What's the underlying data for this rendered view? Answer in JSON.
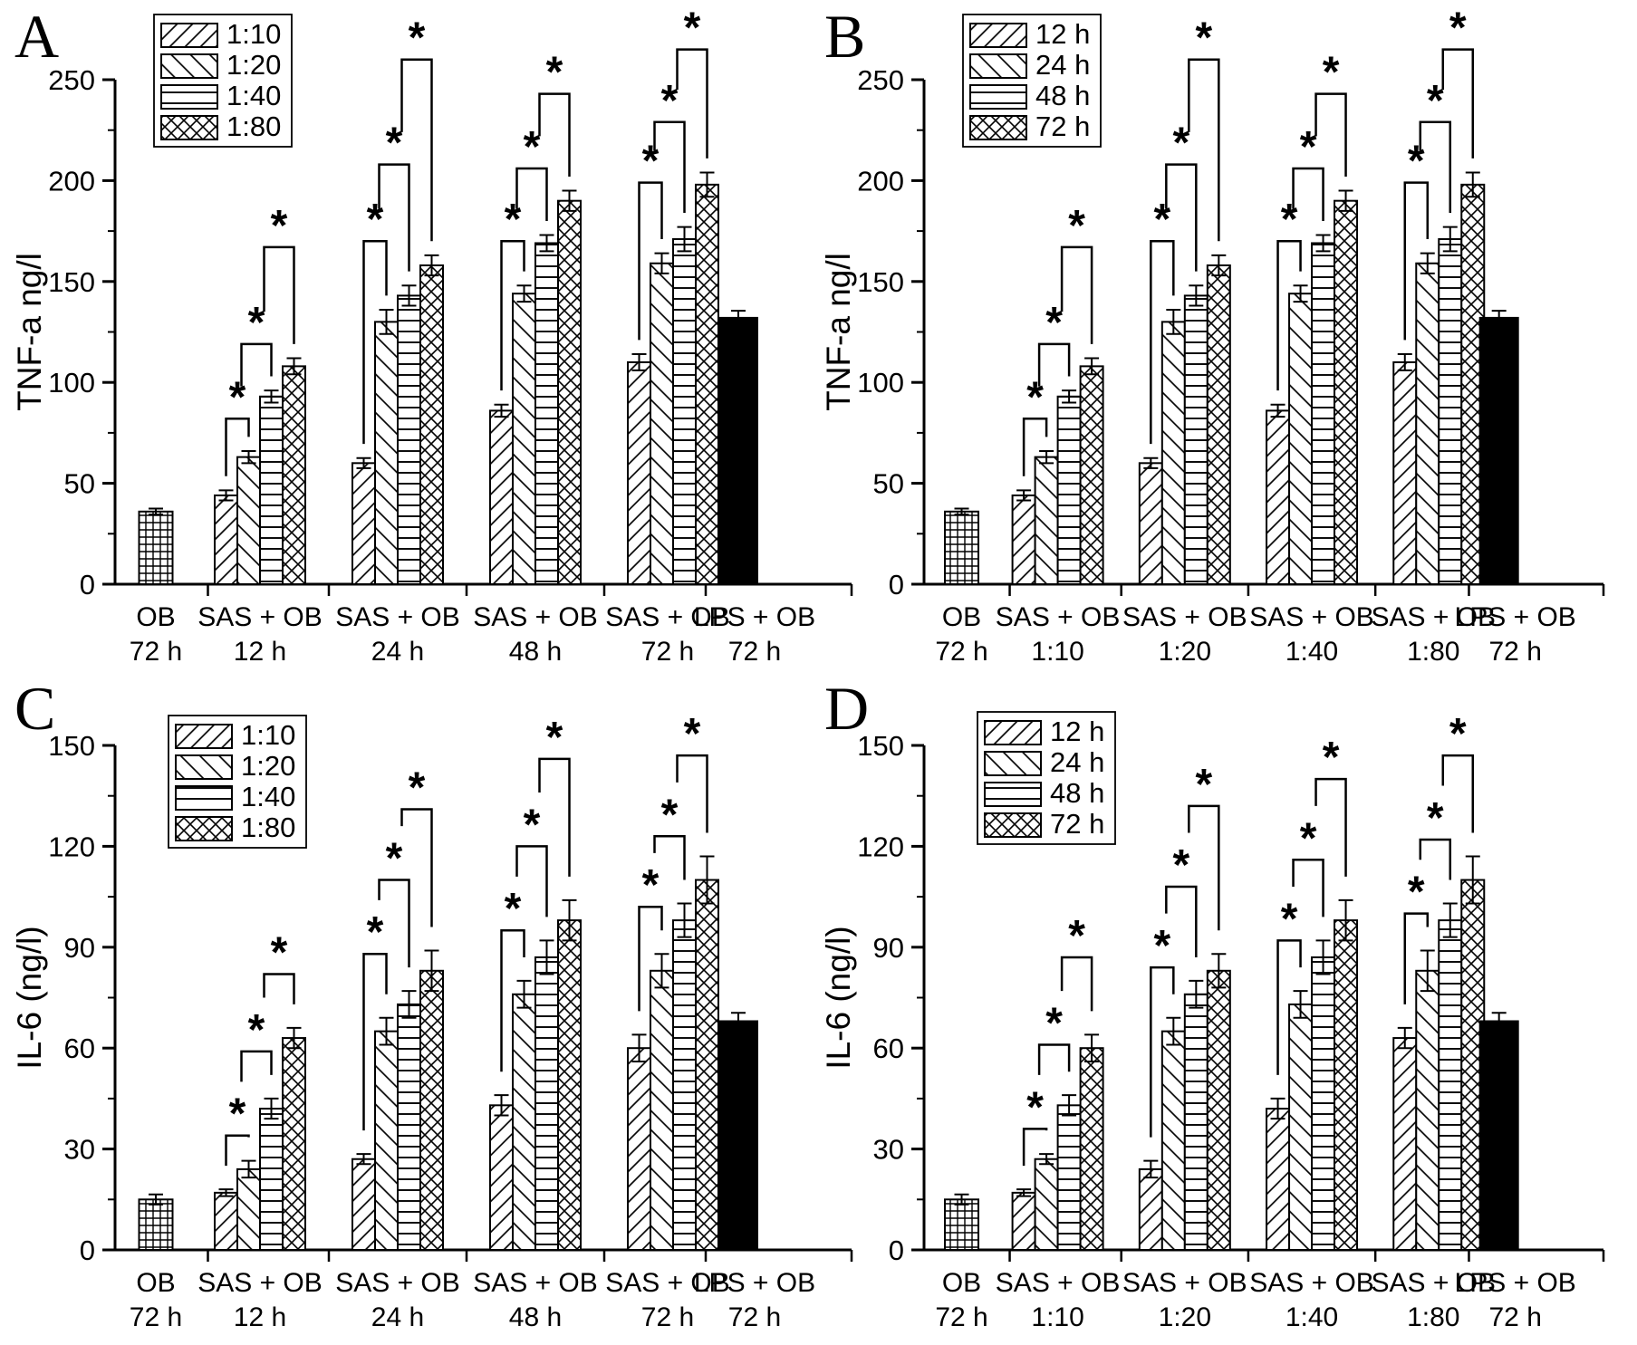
{
  "figure": {
    "background_color": "#ffffff",
    "ink_color": "#000000",
    "significance_marker": "*"
  },
  "chart_data": [
    {
      "panel": "A",
      "type": "bar",
      "title": "",
      "ylabel": "TNF-a  ng/l",
      "xlabel": "",
      "ylim": [
        0,
        250
      ],
      "ytick_major": 50,
      "ytick_minor": 25,
      "grid": false,
      "legend": [
        "1:10",
        "1:20",
        "1:40",
        "1:80"
      ],
      "legend_position": "top-left-inside",
      "legend_patterns": [
        "diagonal-up-hatch",
        "diagonal-down-hatch",
        "horizontal-lines",
        "crosshatch"
      ],
      "categories": [
        [
          "OB",
          "72 h"
        ],
        [
          "SAS + OB",
          "12 h"
        ],
        [
          "SAS + OB",
          "24 h"
        ],
        [
          "SAS + OB",
          "48 h"
        ],
        [
          "SAS + OB",
          "72 h"
        ],
        [
          "LPS + OB",
          "72 h"
        ]
      ],
      "groups": [
        {
          "style": "grid",
          "values": [
            36
          ],
          "errors": [
            1.5
          ]
        },
        {
          "style": "series",
          "values": [
            44,
            63,
            93,
            108
          ],
          "errors": [
            2.5,
            3,
            3,
            4
          ],
          "sig_bracket_heights": [
            82,
            119,
            167
          ]
        },
        {
          "style": "series",
          "values": [
            60,
            130,
            143,
            158
          ],
          "errors": [
            2.5,
            6,
            5,
            5
          ],
          "sig_bracket_heights": [
            170,
            208,
            260
          ]
        },
        {
          "style": "series",
          "values": [
            86,
            144,
            169,
            190
          ],
          "errors": [
            3,
            4,
            4,
            5
          ],
          "sig_bracket_heights": [
            170,
            206,
            243
          ]
        },
        {
          "style": "series",
          "values": [
            110,
            159,
            171,
            198
          ],
          "errors": [
            4,
            5,
            6,
            6
          ],
          "sig_bracket_heights": [
            199,
            229,
            265
          ]
        },
        {
          "style": "solid",
          "values": [
            132
          ],
          "errors": [
            3.5
          ]
        }
      ],
      "significance_marker": "*"
    },
    {
      "panel": "B",
      "type": "bar",
      "title": "",
      "ylabel": "TNF-a  ng/l",
      "xlabel": "",
      "ylim": [
        0,
        250
      ],
      "ytick_major": 50,
      "ytick_minor": 25,
      "grid": false,
      "legend": [
        "12 h",
        "24 h",
        "48 h",
        "72 h"
      ],
      "legend_position": "top-left-inside",
      "legend_patterns": [
        "diagonal-up-hatch",
        "diagonal-down-hatch",
        "horizontal-lines",
        "crosshatch"
      ],
      "categories": [
        [
          "OB",
          "72 h"
        ],
        [
          "SAS + OB",
          "1:10"
        ],
        [
          "SAS + OB",
          "1:20"
        ],
        [
          "SAS + OB",
          "1:40"
        ],
        [
          "SAS + OB",
          "1:80"
        ],
        [
          "LPS + OB",
          "72 h"
        ]
      ],
      "groups": [
        {
          "style": "grid",
          "values": [
            36
          ],
          "errors": [
            1.5
          ]
        },
        {
          "style": "series",
          "values": [
            44,
            63,
            93,
            108
          ],
          "errors": [
            2.5,
            3,
            3,
            4
          ],
          "sig_bracket_heights": [
            82,
            119,
            167
          ]
        },
        {
          "style": "series",
          "values": [
            60,
            130,
            143,
            158
          ],
          "errors": [
            2.5,
            6,
            5,
            5
          ],
          "sig_bracket_heights": [
            170,
            208,
            260
          ]
        },
        {
          "style": "series",
          "values": [
            86,
            144,
            169,
            190
          ],
          "errors": [
            3,
            4,
            4,
            5
          ],
          "sig_bracket_heights": [
            170,
            206,
            243
          ]
        },
        {
          "style": "series",
          "values": [
            110,
            159,
            171,
            198
          ],
          "errors": [
            4,
            5,
            6,
            6
          ],
          "sig_bracket_heights": [
            199,
            229,
            265
          ]
        },
        {
          "style": "solid",
          "values": [
            132
          ],
          "errors": [
            3.5
          ]
        }
      ],
      "significance_marker": "*"
    },
    {
      "panel": "C",
      "type": "bar",
      "title": "",
      "ylabel": "IL-6  (ng/l)",
      "xlabel": "",
      "ylim": [
        0,
        150
      ],
      "ytick_major": 30,
      "ytick_minor": 15,
      "grid": false,
      "legend": [
        "1:10",
        "1:20",
        "1:40",
        "1:80"
      ],
      "legend_position": "top-left-inside",
      "legend_patterns": [
        "diagonal-up-hatch",
        "diagonal-down-hatch",
        "horizontal-lines",
        "crosshatch"
      ],
      "categories": [
        [
          "OB",
          "72 h"
        ],
        [
          "SAS + OB",
          "12 h"
        ],
        [
          "SAS + OB",
          "24 h"
        ],
        [
          "SAS + OB",
          "48 h"
        ],
        [
          "SAS + OB",
          "72 h"
        ],
        [
          "LPS + OB",
          "72 h"
        ]
      ],
      "groups": [
        {
          "style": "grid",
          "values": [
            15
          ],
          "errors": [
            1.5
          ]
        },
        {
          "style": "series",
          "values": [
            17,
            24,
            42,
            63
          ],
          "errors": [
            1,
            2.5,
            3,
            3
          ],
          "sig_bracket_heights": [
            34,
            59,
            82
          ]
        },
        {
          "style": "series",
          "values": [
            27,
            65,
            73,
            83
          ],
          "errors": [
            1.5,
            4,
            4,
            6
          ],
          "sig_bracket_heights": [
            88,
            110,
            131
          ]
        },
        {
          "style": "series",
          "values": [
            43,
            76,
            87,
            98
          ],
          "errors": [
            3,
            4,
            5,
            6
          ],
          "sig_bracket_heights": [
            95,
            120,
            146
          ]
        },
        {
          "style": "series",
          "values": [
            60,
            83,
            98,
            110
          ],
          "errors": [
            4,
            5,
            5,
            7
          ],
          "sig_bracket_heights": [
            102,
            123,
            147
          ]
        },
        {
          "style": "solid",
          "values": [
            68
          ],
          "errors": [
            2.5
          ]
        }
      ],
      "significance_marker": "*"
    },
    {
      "panel": "D",
      "type": "bar",
      "title": "",
      "ylabel": "IL-6  (ng/l)",
      "xlabel": "",
      "ylim": [
        0,
        150
      ],
      "ytick_major": 30,
      "ytick_minor": 15,
      "grid": false,
      "legend": [
        "12 h",
        "24 h",
        "48 h",
        "72 h"
      ],
      "legend_position": "top-left-inside",
      "legend_patterns": [
        "diagonal-up-hatch",
        "diagonal-down-hatch",
        "horizontal-lines",
        "crosshatch"
      ],
      "categories": [
        [
          "OB",
          "72 h"
        ],
        [
          "SAS + OB",
          "1:10"
        ],
        [
          "SAS + OB",
          "1:20"
        ],
        [
          "SAS + OB",
          "1:40"
        ],
        [
          "SAS + OB",
          "1:80"
        ],
        [
          "LPS + OB",
          "72 h"
        ]
      ],
      "groups": [
        {
          "style": "grid",
          "values": [
            15
          ],
          "errors": [
            1.5
          ]
        },
        {
          "style": "series",
          "values": [
            17,
            27,
            43,
            60
          ],
          "errors": [
            1,
            1.5,
            3,
            4
          ],
          "sig_bracket_heights": [
            36,
            61,
            87
          ]
        },
        {
          "style": "series",
          "values": [
            24,
            65,
            76,
            83
          ],
          "errors": [
            2.5,
            4,
            4,
            5
          ],
          "sig_bracket_heights": [
            84,
            108,
            132
          ]
        },
        {
          "style": "series",
          "values": [
            42,
            73,
            87,
            98
          ],
          "errors": [
            3,
            4,
            5,
            6
          ],
          "sig_bracket_heights": [
            92,
            116,
            140
          ]
        },
        {
          "style": "series",
          "values": [
            63,
            83,
            98,
            110
          ],
          "errors": [
            3,
            6,
            5,
            7
          ],
          "sig_bracket_heights": [
            100,
            122,
            147
          ]
        },
        {
          "style": "solid",
          "values": [
            68
          ],
          "errors": [
            2.5
          ]
        }
      ],
      "significance_marker": "*"
    }
  ]
}
